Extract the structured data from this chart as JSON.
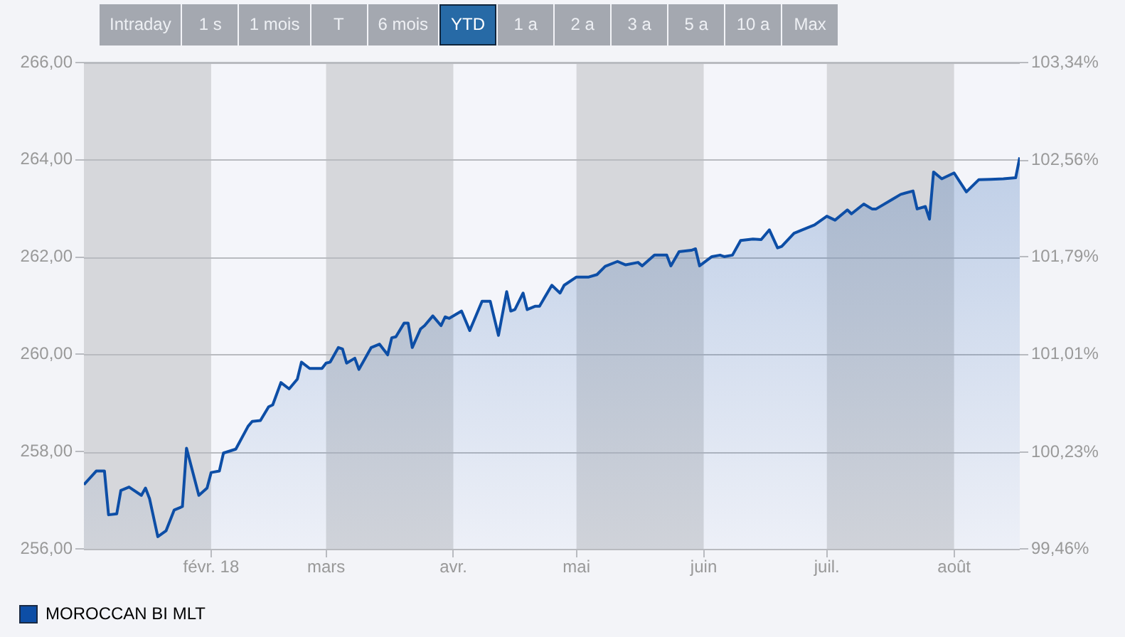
{
  "chart_data": {
    "type": "area",
    "annotations": [
      "Intraday",
      "1 s",
      "1 mois",
      "T",
      "6 mois",
      "YTD",
      "1 a",
      "2 a",
      "3 a",
      "5 a",
      "10 a",
      "Max"
    ],
    "series": [
      {
        "name": "MOROCCAN BI MLT",
        "color": "#0d4ea6",
        "x": [
          "2018-01-01",
          "2018-01-04",
          "2018-01-06",
          "2018-01-07",
          "2018-01-09",
          "2018-01-10",
          "2018-01-12",
          "2018-01-15",
          "2018-01-16",
          "2018-01-17",
          "2018-01-19",
          "2018-01-21",
          "2018-01-23",
          "2018-01-25",
          "2018-01-26",
          "2018-01-29",
          "2018-01-31",
          "2018-02-01",
          "2018-02-03",
          "2018-02-04",
          "2018-02-07",
          "2018-02-10",
          "2018-02-11",
          "2018-02-13",
          "2018-02-15",
          "2018-02-16",
          "2018-02-18",
          "2018-02-20",
          "2018-02-22",
          "2018-02-23",
          "2018-02-25",
          "2018-02-28",
          "2018-03-01",
          "2018-03-02",
          "2018-03-04",
          "2018-03-05",
          "2018-03-06",
          "2018-03-08",
          "2018-03-09",
          "2018-03-12",
          "2018-03-14",
          "2018-03-16",
          "2018-03-17",
          "2018-03-18",
          "2018-03-20",
          "2018-03-21",
          "2018-03-22",
          "2018-03-24",
          "2018-03-25",
          "2018-03-27",
          "2018-03-29",
          "2018-03-30",
          "2018-03-31",
          "2018-04-03",
          "2018-04-05",
          "2018-04-06",
          "2018-04-08",
          "2018-04-09",
          "2018-04-10",
          "2018-04-12",
          "2018-04-14",
          "2018-04-15",
          "2018-04-16",
          "2018-04-18",
          "2018-04-19",
          "2018-04-21",
          "2018-04-22",
          "2018-04-25",
          "2018-04-27",
          "2018-04-28",
          "2018-05-01",
          "2018-05-04",
          "2018-05-06",
          "2018-05-08",
          "2018-05-11",
          "2018-05-13",
          "2018-05-16",
          "2018-05-17",
          "2018-05-20",
          "2018-05-23",
          "2018-05-24",
          "2018-05-26",
          "2018-05-29",
          "2018-05-30",
          "2018-05-31",
          "2018-06-03",
          "2018-06-05",
          "2018-06-06",
          "2018-06-08",
          "2018-06-10",
          "2018-06-13",
          "2018-06-15",
          "2018-06-17",
          "2018-06-19",
          "2018-06-20",
          "2018-06-23",
          "2018-06-25",
          "2018-06-28",
          "2018-07-01",
          "2018-07-03",
          "2018-07-06",
          "2018-07-07",
          "2018-07-10",
          "2018-07-12",
          "2018-07-13",
          "2018-07-17",
          "2018-07-19",
          "2018-07-22",
          "2018-07-23",
          "2018-07-25",
          "2018-07-26",
          "2018-07-27",
          "2018-07-29",
          "2018-08-01",
          "2018-08-04",
          "2018-08-07",
          "2018-08-10",
          "2018-08-13",
          "2018-08-16",
          "2018-08-17"
        ],
        "values": [
          257.32,
          257.6,
          257.6,
          256.7,
          256.72,
          257.2,
          257.27,
          257.1,
          257.25,
          257.03,
          256.25,
          256.37,
          256.8,
          256.87,
          258.07,
          257.1,
          257.25,
          257.57,
          257.6,
          257.97,
          258.05,
          258.52,
          258.62,
          258.64,
          258.92,
          258.96,
          259.42,
          259.29,
          259.49,
          259.84,
          259.71,
          259.71,
          259.82,
          259.84,
          260.14,
          260.11,
          259.82,
          259.92,
          259.69,
          260.14,
          260.21,
          259.99,
          260.34,
          260.36,
          260.64,
          260.64,
          260.14,
          260.52,
          260.59,
          260.79,
          260.59,
          260.77,
          260.74,
          260.89,
          260.49,
          260.69,
          261.09,
          261.09,
          261.09,
          260.39,
          261.29,
          260.89,
          260.92,
          261.26,
          260.92,
          260.99,
          260.99,
          261.42,
          261.26,
          261.42,
          261.59,
          261.59,
          261.64,
          261.81,
          261.91,
          261.84,
          261.89,
          261.82,
          262.04,
          262.04,
          261.82,
          262.11,
          262.14,
          262.17,
          261.82,
          262.01,
          262.04,
          262.01,
          262.04,
          262.34,
          262.37,
          262.36,
          262.56,
          262.19,
          262.22,
          262.49,
          262.56,
          262.66,
          262.84,
          262.76,
          262.97,
          262.89,
          263.09,
          262.99,
          262.99,
          263.19,
          263.29,
          263.36,
          262.99,
          263.04,
          262.78,
          263.75,
          263.61,
          263.73,
          263.34,
          263.59,
          263.6,
          263.61,
          263.63,
          264.05
        ]
      }
    ],
    "xlim": [
      "2018-01-01",
      "2018-08-17"
    ],
    "xticks": [
      {
        "value": "2018-02-01",
        "label": "févr. 18"
      },
      {
        "value": "2018-03-01",
        "label": "mars"
      },
      {
        "value": "2018-04-01",
        "label": "avr."
      },
      {
        "value": "2018-05-01",
        "label": "mai"
      },
      {
        "value": "2018-06-01",
        "label": "juin"
      },
      {
        "value": "2018-07-01",
        "label": "juil."
      },
      {
        "value": "2018-08-01",
        "label": "août"
      }
    ],
    "ylim": [
      256,
      266
    ],
    "yticks": [
      {
        "value": 256,
        "label": "256,00"
      },
      {
        "value": 258,
        "label": "258,00"
      },
      {
        "value": 260,
        "label": "260,00"
      },
      {
        "value": 262,
        "label": "262,00"
      },
      {
        "value": 264,
        "label": "264,00"
      },
      {
        "value": 266,
        "label": "266,00"
      }
    ],
    "y2lim": [
      99.46,
      103.34
    ],
    "y2ticks": [
      {
        "value": 99.46,
        "label": "99,46%"
      },
      {
        "value": 100.23,
        "label": "100,23%"
      },
      {
        "value": 101.01,
        "label": "101,01%"
      },
      {
        "value": 101.79,
        "label": "101,79%"
      },
      {
        "value": 102.56,
        "label": "102,56%"
      },
      {
        "value": 103.34,
        "label": "103,34%"
      }
    ],
    "bands": [
      {
        "axis": "x",
        "from": "2018-01-01",
        "to": "2018-02-01",
        "color": "#d6d7db"
      },
      {
        "axis": "x",
        "from": "2018-03-01",
        "to": "2018-04-01",
        "color": "#d6d7db"
      },
      {
        "axis": "x",
        "from": "2018-05-01",
        "to": "2018-06-01",
        "color": "#d6d7db"
      },
      {
        "axis": "x",
        "from": "2018-07-01",
        "to": "2018-08-01",
        "color": "#d6d7db"
      }
    ],
    "grid": "y",
    "legend": "bottom left",
    "marker": "none",
    "line_style": "solid"
  }
}
